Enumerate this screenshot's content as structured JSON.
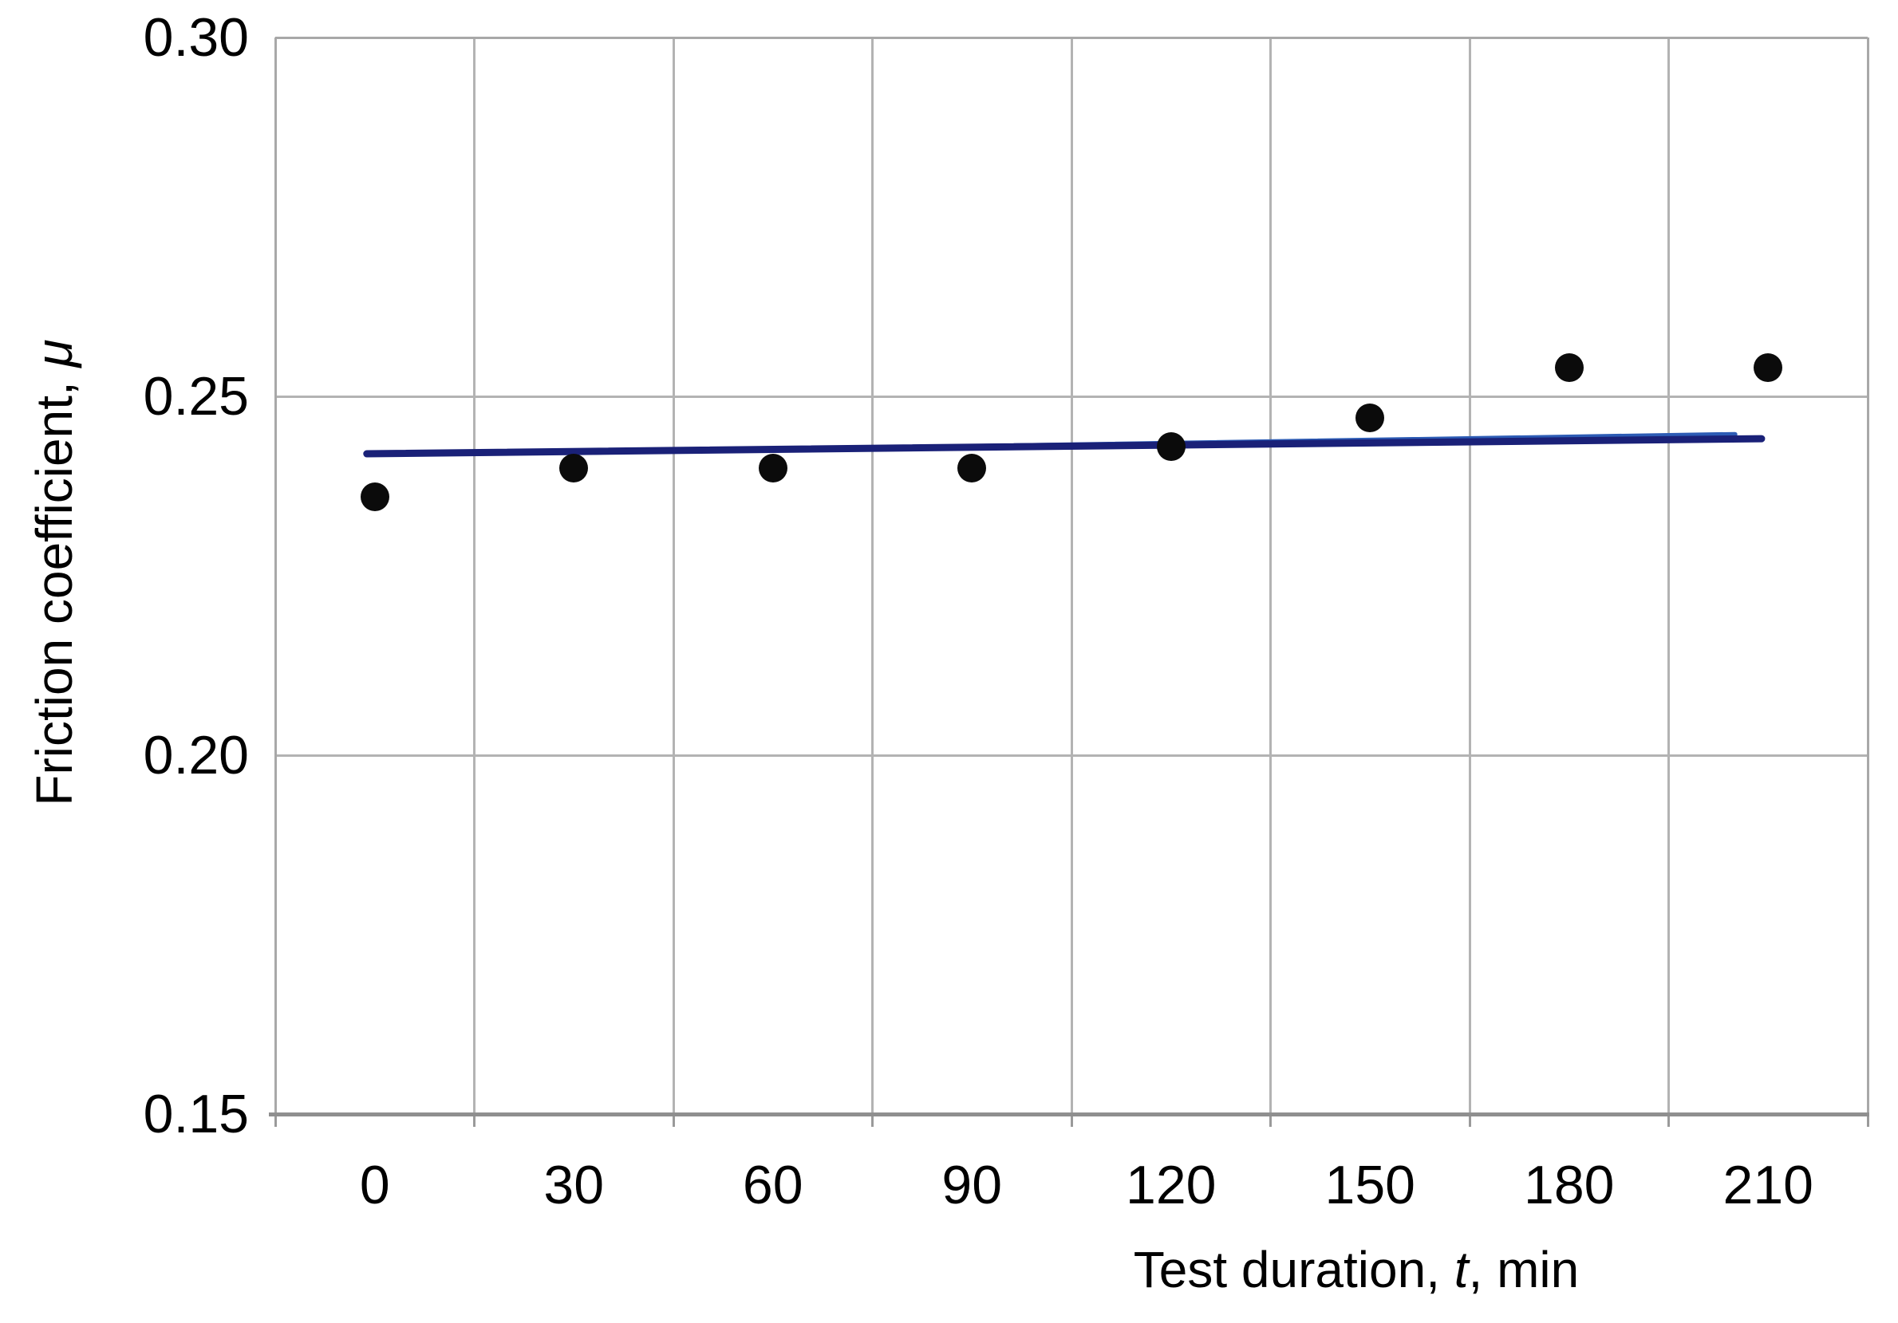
{
  "labels": {
    "y_title_prefix": "Friction coefficient, ",
    "y_title_symbol": "μ",
    "x_title_prefix": "Test duration, ",
    "x_title_symbol": "t",
    "x_title_suffix": ", min"
  },
  "chart_data": {
    "type": "scatter",
    "title": "",
    "xlabel": "Test duration, t, min",
    "ylabel": "Friction coefficient, μ",
    "x": [
      0,
      30,
      60,
      90,
      120,
      150,
      180,
      210
    ],
    "series": [
      {
        "name": "friction-coefficient-measurements",
        "marker": "black-circle",
        "values": [
          0.236,
          0.24,
          0.24,
          0.24,
          0.243,
          0.247,
          0.254,
          0.254
        ]
      }
    ],
    "trend_lines": [
      {
        "name": "trend-line-light-blue",
        "color": "#2d5cb5",
        "width": 6,
        "t1": 33,
        "mu1": 0.2422,
        "t2": 205,
        "mu2": 0.2447
      },
      {
        "name": "trend-line-navy",
        "color": "#1a2178",
        "width": 9,
        "t1": -1.2,
        "mu1": 0.242,
        "t2": 209,
        "mu2": 0.2441
      }
    ],
    "x_ticks": [
      "0",
      "30",
      "60",
      "90",
      "120",
      "150",
      "180",
      "210"
    ],
    "y_ticks": [
      "0.30",
      "0.25",
      "0.20",
      "0.15"
    ],
    "ylim": [
      0.15,
      0.3
    ],
    "grid": true,
    "legend": false,
    "colors": {
      "point": "#0b0b0b",
      "grid": "#b3b3b3",
      "plot_border": "#a8a8a8",
      "axis_line": "#8f8f8f",
      "tick": "#9a9a9a",
      "text": "#000000",
      "background": "#ffffff"
    }
  }
}
